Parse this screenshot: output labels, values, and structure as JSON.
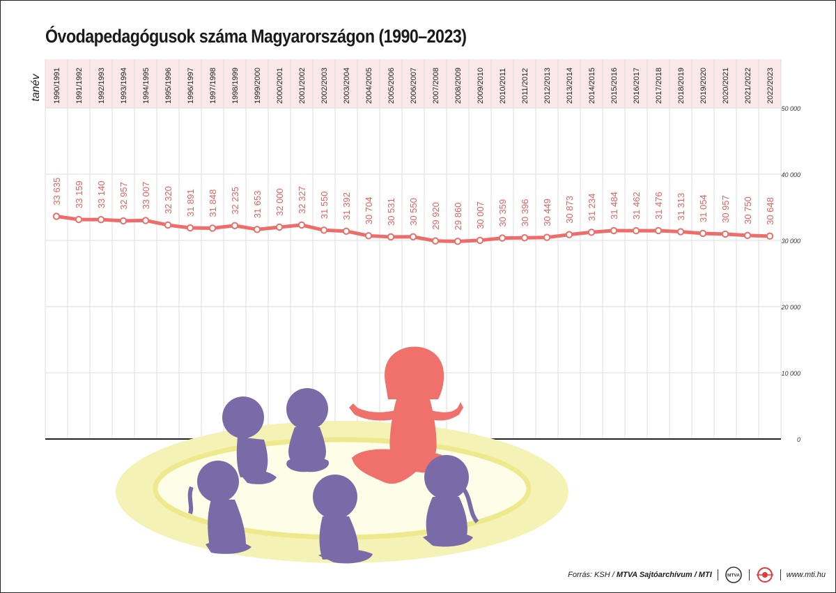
{
  "title": "Óvodapedagógusok száma Magyarországon (1990–2023)",
  "axis_unit_label": "tanév",
  "footer": {
    "source_prefix": "Forrás: KSH / ",
    "source_bold": "MTVA Sajtóarchívum / MTI",
    "logo_mtva_text": "MTVA",
    "website": "www.mti.hu"
  },
  "colors": {
    "line": "#ee6d6b",
    "label": "#e8605d",
    "header_band": "#fbe9e9",
    "grid": "#dcdcdc",
    "baseline": "#222222",
    "children": "#7a6aa8",
    "teacher": "#f0716c",
    "rug_outer": "#f4f2b4",
    "rug_inner": "#fdfde8"
  },
  "chart_data": {
    "type": "line",
    "title": "Óvodapedagógusok száma Magyarországon (1990–2023)",
    "xlabel": "tanév",
    "ylabel": "",
    "ylim": [
      0,
      50000
    ],
    "yticks": [
      0,
      10000,
      20000,
      30000,
      40000,
      50000
    ],
    "ytick_labels": [
      "0",
      "10 000",
      "20 000",
      "30 000",
      "40 000",
      "50 000"
    ],
    "grid": true,
    "categories": [
      "1990/1991",
      "1991/1992",
      "1992/1993",
      "1993/1994",
      "1994/1995",
      "1995/1996",
      "1996/1997",
      "1997/1998",
      "1998/1999",
      "1999/2000",
      "2000/2001",
      "2001/2002",
      "2002/2003",
      "2003/2004",
      "2004/2005",
      "2005/2006",
      "2006/2007",
      "2007/2008",
      "2008/2009",
      "2009/2010",
      "2010/2011",
      "2011/2012",
      "2012/2013",
      "2013/2014",
      "2014/2015",
      "2015/2016",
      "2016/2017",
      "2017/2018",
      "2018/2019",
      "2019/2020",
      "2020/2021",
      "2021/2022",
      "2022/2023"
    ],
    "values": [
      33635,
      33159,
      33140,
      32957,
      33007,
      32320,
      31891,
      31848,
      32235,
      31653,
      32000,
      32327,
      31550,
      31392,
      30704,
      30531,
      30550,
      29920,
      29860,
      30007,
      30359,
      30396,
      30449,
      30873,
      31234,
      31484,
      31462,
      31476,
      31313,
      31054,
      30957,
      30750,
      30648
    ],
    "value_labels": [
      "33 635",
      "33 159",
      "33 140",
      "32 957",
      "33 007",
      "32 320",
      "31 891",
      "31 848",
      "32 235",
      "31 653",
      "32 000",
      "32 327",
      "31 550",
      "31 392",
      "30 704",
      "30 531",
      "30 550",
      "29 920",
      "29 860",
      "30 007",
      "30 359",
      "30 396",
      "30 449",
      "30 873",
      "31 234",
      "31 484",
      "31 462",
      "31 476",
      "31 313",
      "31 054",
      "30 957",
      "30 750",
      "30 648"
    ]
  }
}
